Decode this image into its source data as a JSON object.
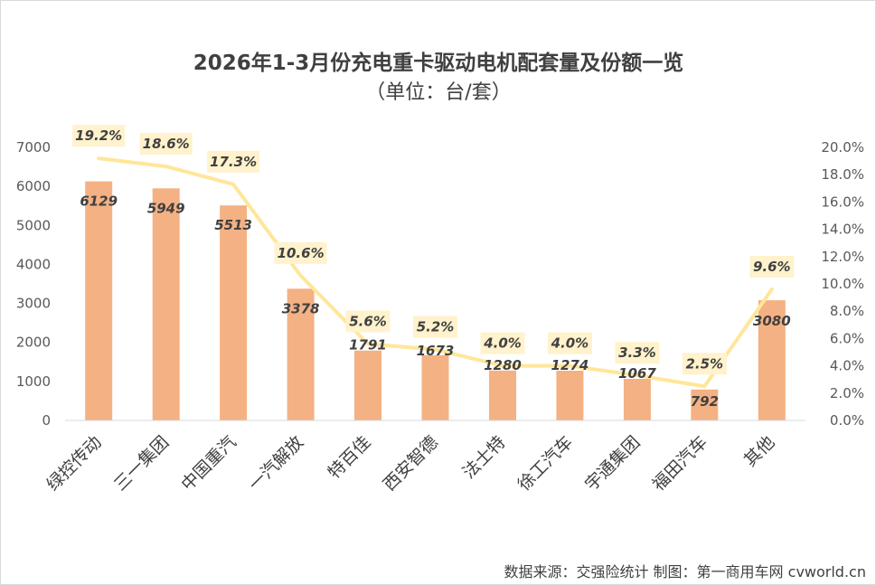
{
  "chart_data": {
    "type": "bar",
    "title": "2026年1-3月份充电重卡驱动电机配套量及份额一览",
    "subtitle": "（单位：台/套）",
    "categories": [
      "绿控传动",
      "三一集团",
      "中国重汽",
      "一汽解放",
      "特百佳",
      "西安智德",
      "法士特",
      "徐工汽车",
      "宇通集团",
      "福田汽车",
      "其他"
    ],
    "series": [
      {
        "type": "bar",
        "axis": "left",
        "values": [
          6129,
          5949,
          5513,
          3378,
          1791,
          1673,
          1280,
          1274,
          1067,
          792,
          3080
        ]
      },
      {
        "type": "line",
        "axis": "right",
        "values": [
          19.2,
          18.6,
          17.3,
          10.6,
          5.6,
          5.2,
          4.0,
          4.0,
          3.3,
          2.5,
          9.6
        ],
        "labels": [
          "19.2%",
          "18.6%",
          "17.3%",
          "10.6%",
          "5.6%",
          "5.2%",
          "4.0%",
          "4.0%",
          "3.3%",
          "2.5%",
          "9.6%"
        ]
      }
    ],
    "y_left": {
      "min": 0,
      "max": 7000,
      "step": 1000,
      "ticks": [
        "0",
        "1000",
        "2000",
        "3000",
        "4000",
        "5000",
        "6000",
        "7000"
      ]
    },
    "y_right": {
      "min": 0,
      "max": 20,
      "step": 2,
      "ticks": [
        "0.0%",
        "2.0%",
        "4.0%",
        "6.0%",
        "8.0%",
        "10.0%",
        "12.0%",
        "14.0%",
        "16.0%",
        "18.0%",
        "20.0%"
      ]
    },
    "grid": false,
    "legend": false,
    "colors": {
      "bar": "#F4B183",
      "line": "#FFE699",
      "label_box": "#FFF2CC"
    }
  },
  "source": "数据来源：交强险统计 制图：第一商用车网 cvworld.cn"
}
